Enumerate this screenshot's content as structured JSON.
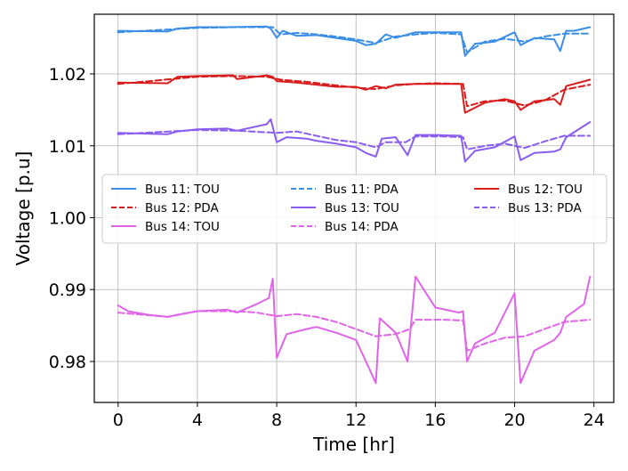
{
  "chart_data": {
    "type": "line",
    "title": "",
    "xlabel": "Time [hr]",
    "ylabel": "Voltage [p.u]",
    "xlim": [
      -1.2,
      25
    ],
    "ylim": [
      0.9743,
      1.0283
    ],
    "xticks": [
      0,
      4,
      8,
      12,
      16,
      20,
      24
    ],
    "xtick_labels": [
      "0",
      "4",
      "8",
      "12",
      "16",
      "20",
      "24"
    ],
    "yticks": [
      0.98,
      0.99,
      1.0,
      1.01,
      1.02
    ],
    "ytick_labels": [
      "0.98",
      "0.99",
      "1.00",
      "1.01",
      "1.02"
    ],
    "grid": true,
    "legend_position": "center",
    "legend_columns": 3,
    "series": [
      {
        "name": "Bus 11: TOU",
        "color": "#3a8ee6",
        "dash": "solid",
        "points": [
          [
            0,
            1.026
          ],
          [
            2.5,
            1.0259
          ],
          [
            3,
            1.0263
          ],
          [
            4,
            1.0265
          ],
          [
            5.5,
            1.0265
          ],
          [
            7.5,
            1.0266
          ],
          [
            7.7,
            1.0263
          ],
          [
            8,
            1.025
          ],
          [
            8.3,
            1.026
          ],
          [
            9,
            1.0253
          ],
          [
            10,
            1.0254
          ],
          [
            11,
            1.025
          ],
          [
            12,
            1.0246
          ],
          [
            12.5,
            1.024
          ],
          [
            13,
            1.0242
          ],
          [
            13.5,
            1.0255
          ],
          [
            14,
            1.025
          ],
          [
            15,
            1.0258
          ],
          [
            16,
            1.0258
          ],
          [
            17.3,
            1.0258
          ],
          [
            17.5,
            1.0225
          ],
          [
            18,
            1.0242
          ],
          [
            19,
            1.0245
          ],
          [
            20,
            1.0258
          ],
          [
            20.3,
            1.024
          ],
          [
            21,
            1.025
          ],
          [
            22,
            1.0248
          ],
          [
            22.3,
            1.0232
          ],
          [
            22.6,
            1.026
          ],
          [
            23,
            1.026
          ],
          [
            23.8,
            1.0265
          ]
        ]
      },
      {
        "name": "Bus 11: PDA",
        "color": "#3a8ee6",
        "dash": "dashed",
        "points": [
          [
            0,
            1.0258
          ],
          [
            4,
            1.0264
          ],
          [
            6,
            1.0265
          ],
          [
            7.8,
            1.0265
          ],
          [
            8.2,
            1.0255
          ],
          [
            9,
            1.0257
          ],
          [
            10,
            1.0255
          ],
          [
            11,
            1.0252
          ],
          [
            12,
            1.0248
          ],
          [
            13,
            1.0243
          ],
          [
            14,
            1.0252
          ],
          [
            15,
            1.0255
          ],
          [
            16,
            1.0257
          ],
          [
            17.3,
            1.0255
          ],
          [
            17.6,
            1.023
          ],
          [
            18.5,
            1.0245
          ],
          [
            19.5,
            1.0249
          ],
          [
            20.5,
            1.0245
          ],
          [
            21.5,
            1.0252
          ],
          [
            22.5,
            1.0256
          ],
          [
            23.8,
            1.0256
          ]
        ]
      },
      {
        "name": "Bus 12: TOU",
        "color": "#d91c1c",
        "dash": "solid",
        "points": [
          [
            0,
            1.0188
          ],
          [
            2.5,
            1.0187
          ],
          [
            3,
            1.0196
          ],
          [
            4,
            1.0197
          ],
          [
            5.8,
            1.0198
          ],
          [
            6,
            1.0193
          ],
          [
            7.5,
            1.0198
          ],
          [
            7.8,
            1.0196
          ],
          [
            8,
            1.019
          ],
          [
            9,
            1.0188
          ],
          [
            10,
            1.0185
          ],
          [
            11,
            1.0182
          ],
          [
            12,
            1.0182
          ],
          [
            12.5,
            1.0178
          ],
          [
            13,
            1.0183
          ],
          [
            13.5,
            1.018
          ],
          [
            14,
            1.0185
          ],
          [
            15,
            1.0186
          ],
          [
            16,
            1.0186
          ],
          [
            17.3,
            1.0186
          ],
          [
            17.5,
            1.0146
          ],
          [
            18.5,
            1.016
          ],
          [
            19.5,
            1.0165
          ],
          [
            20,
            1.0162
          ],
          [
            20.3,
            1.015
          ],
          [
            21,
            1.0162
          ],
          [
            22,
            1.0165
          ],
          [
            22.3,
            1.0157
          ],
          [
            22.6,
            1.0183
          ],
          [
            23.8,
            1.0192
          ]
        ]
      },
      {
        "name": "Bus 12: PDA",
        "color": "#d91c1c",
        "dash": "dashed",
        "points": [
          [
            0,
            1.0186
          ],
          [
            4,
            1.0196
          ],
          [
            6,
            1.0197
          ],
          [
            7.5,
            1.0196
          ],
          [
            8.2,
            1.0192
          ],
          [
            9.5,
            1.0189
          ],
          [
            11,
            1.0184
          ],
          [
            12,
            1.0181
          ],
          [
            13,
            1.0179
          ],
          [
            14,
            1.0184
          ],
          [
            15,
            1.0186
          ],
          [
            16,
            1.0187
          ],
          [
            17.4,
            1.0186
          ],
          [
            17.6,
            1.0155
          ],
          [
            18.5,
            1.0162
          ],
          [
            19.5,
            1.0163
          ],
          [
            20.5,
            1.0156
          ],
          [
            21.5,
            1.0163
          ],
          [
            22.5,
            1.0178
          ],
          [
            23.8,
            1.0185
          ]
        ]
      },
      {
        "name": "Bus 13: TOU",
        "color": "#8a5cf0",
        "dash": "solid",
        "points": [
          [
            0,
            1.0118
          ],
          [
            2.5,
            1.0116
          ],
          [
            3,
            1.012
          ],
          [
            4,
            1.0123
          ],
          [
            5.5,
            1.0124
          ],
          [
            6,
            1.0121
          ],
          [
            7.5,
            1.013
          ],
          [
            7.7,
            1.0137
          ],
          [
            8,
            1.0105
          ],
          [
            8.5,
            1.0112
          ],
          [
            9.5,
            1.011
          ],
          [
            10,
            1.0107
          ],
          [
            11,
            1.0103
          ],
          [
            12,
            1.0098
          ],
          [
            12.5,
            1.009
          ],
          [
            13,
            1.0085
          ],
          [
            13.3,
            1.011
          ],
          [
            14,
            1.0112
          ],
          [
            14.6,
            1.0087
          ],
          [
            15,
            1.0115
          ],
          [
            16,
            1.0115
          ],
          [
            17.3,
            1.0114
          ],
          [
            17.5,
            1.0078
          ],
          [
            18,
            1.0093
          ],
          [
            19,
            1.0098
          ],
          [
            20,
            1.0113
          ],
          [
            20.3,
            1.008
          ],
          [
            21,
            1.009
          ],
          [
            22,
            1.0092
          ],
          [
            22.3,
            1.0095
          ],
          [
            22.6,
            1.0112
          ],
          [
            23.8,
            1.0133
          ]
        ]
      },
      {
        "name": "Bus 13: PDA",
        "color": "#8a5cf0",
        "dash": "dashed",
        "points": [
          [
            0,
            1.0116
          ],
          [
            4,
            1.0122
          ],
          [
            6,
            1.0121
          ],
          [
            8,
            1.0118
          ],
          [
            9,
            1.012
          ],
          [
            10,
            1.0114
          ],
          [
            11,
            1.0108
          ],
          [
            12,
            1.0105
          ],
          [
            13,
            1.0098
          ],
          [
            13.5,
            1.0105
          ],
          [
            14.5,
            1.0105
          ],
          [
            15,
            1.0113
          ],
          [
            16.5,
            1.0113
          ],
          [
            17.4,
            1.0112
          ],
          [
            17.6,
            1.0095
          ],
          [
            18.5,
            1.01
          ],
          [
            19.5,
            1.0103
          ],
          [
            20.5,
            1.0097
          ],
          [
            21.5,
            1.0106
          ],
          [
            22.5,
            1.0114
          ],
          [
            23.8,
            1.0114
          ]
        ]
      },
      {
        "name": "Bus 14: TOU",
        "color": "#e064e8",
        "dash": "solid",
        "points": [
          [
            0,
            0.9878
          ],
          [
            0.5,
            0.987
          ],
          [
            1.5,
            0.9865
          ],
          [
            2.5,
            0.9862
          ],
          [
            3,
            0.9865
          ],
          [
            4,
            0.987
          ],
          [
            5.5,
            0.9872
          ],
          [
            6,
            0.9868
          ],
          [
            7,
            0.988
          ],
          [
            7.6,
            0.9888
          ],
          [
            7.8,
            0.9915
          ],
          [
            8,
            0.9805
          ],
          [
            8.5,
            0.9838
          ],
          [
            9.5,
            0.9845
          ],
          [
            10,
            0.9848
          ],
          [
            11,
            0.984
          ],
          [
            12,
            0.983
          ],
          [
            12.5,
            0.98
          ],
          [
            13,
            0.977
          ],
          [
            13.2,
            0.986
          ],
          [
            14,
            0.984
          ],
          [
            14.6,
            0.98
          ],
          [
            15,
            0.9918
          ],
          [
            16,
            0.9875
          ],
          [
            17.2,
            0.9868
          ],
          [
            17.4,
            0.987
          ],
          [
            17.6,
            0.98
          ],
          [
            18,
            0.9825
          ],
          [
            19,
            0.984
          ],
          [
            20,
            0.9895
          ],
          [
            20.3,
            0.977
          ],
          [
            21,
            0.9815
          ],
          [
            22,
            0.983
          ],
          [
            22.3,
            0.984
          ],
          [
            22.6,
            0.9862
          ],
          [
            23.5,
            0.988
          ],
          [
            23.8,
            0.9918
          ]
        ]
      },
      {
        "name": "Bus 14: PDA",
        "color": "#e064e8",
        "dash": "dashed",
        "points": [
          [
            0,
            0.9868
          ],
          [
            2.5,
            0.9862
          ],
          [
            4,
            0.987
          ],
          [
            6,
            0.987
          ],
          [
            7,
            0.9868
          ],
          [
            8,
            0.9863
          ],
          [
            9,
            0.9866
          ],
          [
            10,
            0.9862
          ],
          [
            11,
            0.9855
          ],
          [
            12,
            0.9845
          ],
          [
            13,
            0.9835
          ],
          [
            14,
            0.9838
          ],
          [
            14.7,
            0.9845
          ],
          [
            15,
            0.9858
          ],
          [
            16.5,
            0.9858
          ],
          [
            17.4,
            0.9857
          ],
          [
            17.6,
            0.9815
          ],
          [
            18.5,
            0.9825
          ],
          [
            19.5,
            0.9833
          ],
          [
            20.5,
            0.9835
          ],
          [
            21.5,
            0.9845
          ],
          [
            22.5,
            0.9855
          ],
          [
            23.8,
            0.9858
          ]
        ]
      }
    ]
  }
}
